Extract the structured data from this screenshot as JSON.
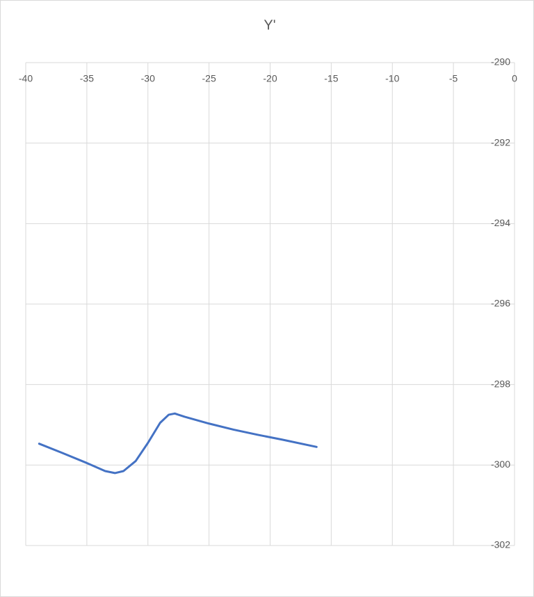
{
  "chart_data": {
    "type": "line",
    "title": "Y'",
    "x": [
      -38.9,
      -37,
      -35,
      -33.5,
      -32.7,
      -32,
      -31,
      -30,
      -29,
      -28.3,
      -27.8,
      -27,
      -25,
      -23,
      -21,
      -19,
      -16.2
    ],
    "series": [
      {
        "name": "Y'",
        "color": "#4472c4",
        "values": [
          -299.47,
          -299.7,
          -299.95,
          -300.15,
          -300.2,
          -300.15,
          -299.9,
          -299.45,
          -298.95,
          -298.75,
          -298.72,
          -298.8,
          -298.97,
          -299.12,
          -299.25,
          -299.37,
          -299.55
        ]
      }
    ],
    "xlim": [
      -40,
      0
    ],
    "xticks": [
      -40,
      -35,
      -30,
      -25,
      -20,
      -15,
      -10,
      -5,
      0
    ],
    "ylim": [
      -302,
      -290
    ],
    "yticks": [
      -290,
      -292,
      -294,
      -296,
      -298,
      -300,
      -302
    ],
    "grid": true
  }
}
